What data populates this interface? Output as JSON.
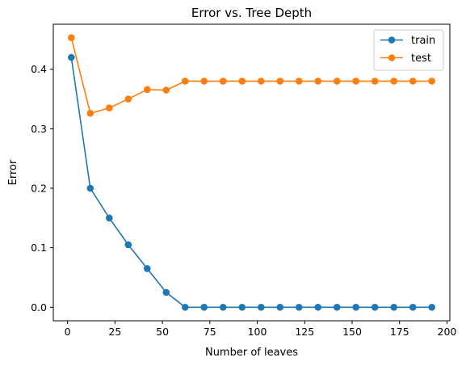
{
  "chart_data": {
    "type": "line",
    "title": "Error vs. Tree Depth",
    "xlabel": "Number of leaves",
    "ylabel": "Error",
    "xlim": [
      -7.5,
      201.5
    ],
    "ylim": [
      -0.0227,
      0.4757
    ],
    "xticks": [
      0,
      25,
      50,
      75,
      100,
      125,
      150,
      175,
      200
    ],
    "yticks": [
      0.0,
      0.1,
      0.2,
      0.3,
      0.4
    ],
    "ytick_labels": [
      "0.0",
      "0.1",
      "0.2",
      "0.3",
      "0.4"
    ],
    "grid": false,
    "legend_position": "top-right",
    "x": [
      2,
      12,
      22,
      32,
      42,
      52,
      62,
      72,
      82,
      92,
      102,
      112,
      122,
      132,
      142,
      152,
      162,
      172,
      182,
      192
    ],
    "series": [
      {
        "name": "train",
        "color": "#1f77b4",
        "values": [
          0.42,
          0.2,
          0.15,
          0.105,
          0.065,
          0.025,
          0.0,
          0.0,
          0.0,
          0.0,
          0.0,
          0.0,
          0.0,
          0.0,
          0.0,
          0.0,
          0.0,
          0.0,
          0.0,
          0.0
        ]
      },
      {
        "name": "test",
        "color": "#ff7f0e",
        "values": [
          0.453,
          0.326,
          0.335,
          0.35,
          0.366,
          0.365,
          0.38,
          0.38,
          0.38,
          0.38,
          0.38,
          0.38,
          0.38,
          0.38,
          0.38,
          0.38,
          0.38,
          0.38,
          0.38,
          0.38
        ]
      }
    ]
  }
}
